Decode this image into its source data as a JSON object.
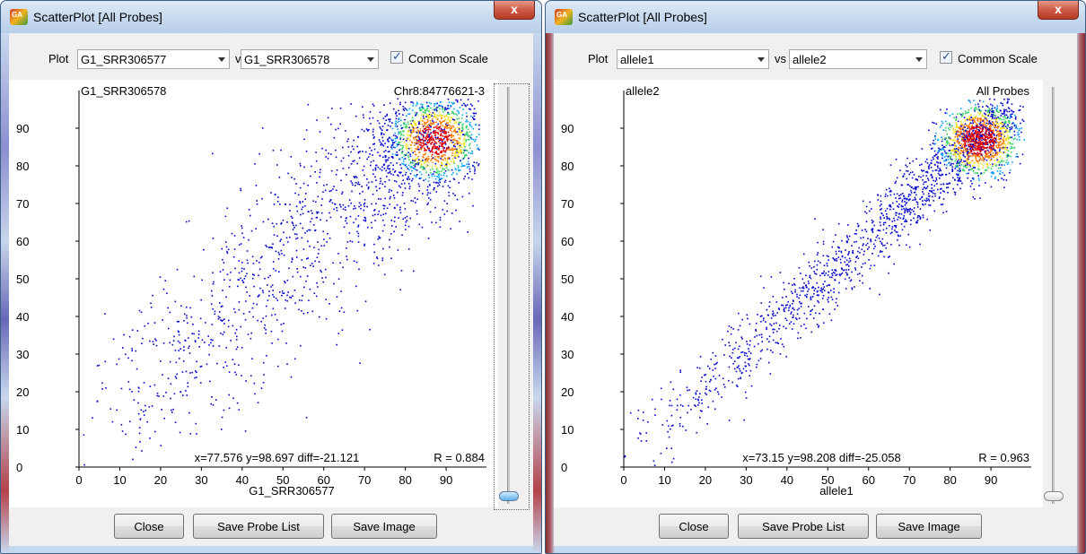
{
  "windows": [
    {
      "title": "ScatterPlot [All Probes]",
      "app_icon_text": "GA",
      "close_glyph": "x",
      "plot_label": "Plot",
      "x_select": "G1_SRR306577",
      "vs_label": "vs",
      "y_select": "G1_SRR306578",
      "checkbox_checked": true,
      "checkbox_label": "Common Scale",
      "buttons": {
        "close": "Close",
        "save_probe_list": "Save Probe List",
        "save_image": "Save Image"
      },
      "chart_data": {
        "type": "scatter",
        "xlabel": "G1_SRR306577",
        "ylabel": "G1_SRR306578",
        "corner_label": "Chr8:84776621-3",
        "xlim": [
          0,
          99
        ],
        "ylim": [
          0,
          100
        ],
        "x_ticks": [
          0,
          10,
          20,
          30,
          40,
          50,
          60,
          70,
          80,
          90
        ],
        "y_ticks": [
          0,
          10,
          20,
          30,
          40,
          50,
          60,
          70,
          80,
          90
        ],
        "readout": "x=77.576 y=98.697 diff=-21.121",
        "correlation": "R = 0.884",
        "dense_region": {
          "x": [
            78,
            96
          ],
          "y": [
            78,
            96
          ]
        },
        "density_colors": [
          "#0000cc",
          "#00a0ff",
          "#30d060",
          "#f0e020",
          "#ff7a00",
          "#e00000"
        ]
      }
    },
    {
      "title": "ScatterPlot [All Probes]",
      "app_icon_text": "GA",
      "close_glyph": "x",
      "plot_label": "Plot",
      "x_select": "allele1",
      "vs_label": "vs",
      "y_select": "allele2",
      "checkbox_checked": true,
      "checkbox_label": "Common Scale",
      "buttons": {
        "close": "Close",
        "save_probe_list": "Save Probe List",
        "save_image": "Save Image"
      },
      "chart_data": {
        "type": "scatter",
        "xlabel": "allele1",
        "ylabel": "allele2",
        "corner_label": "All Probes",
        "xlim": [
          0,
          99
        ],
        "ylim": [
          0,
          100
        ],
        "x_ticks": [
          0,
          10,
          20,
          30,
          40,
          50,
          60,
          70,
          80,
          90
        ],
        "y_ticks": [
          0,
          10,
          20,
          30,
          40,
          50,
          60,
          70,
          80,
          90
        ],
        "readout": "x=73.15 y=98.208 diff=-25.058",
        "correlation": "R = 0.963",
        "dense_region": {
          "x": [
            78,
            95
          ],
          "y": [
            78,
            95
          ]
        },
        "density_colors": [
          "#0000cc",
          "#00a0ff",
          "#30d060",
          "#f0e020",
          "#ff7a00",
          "#e00000"
        ]
      }
    }
  ]
}
